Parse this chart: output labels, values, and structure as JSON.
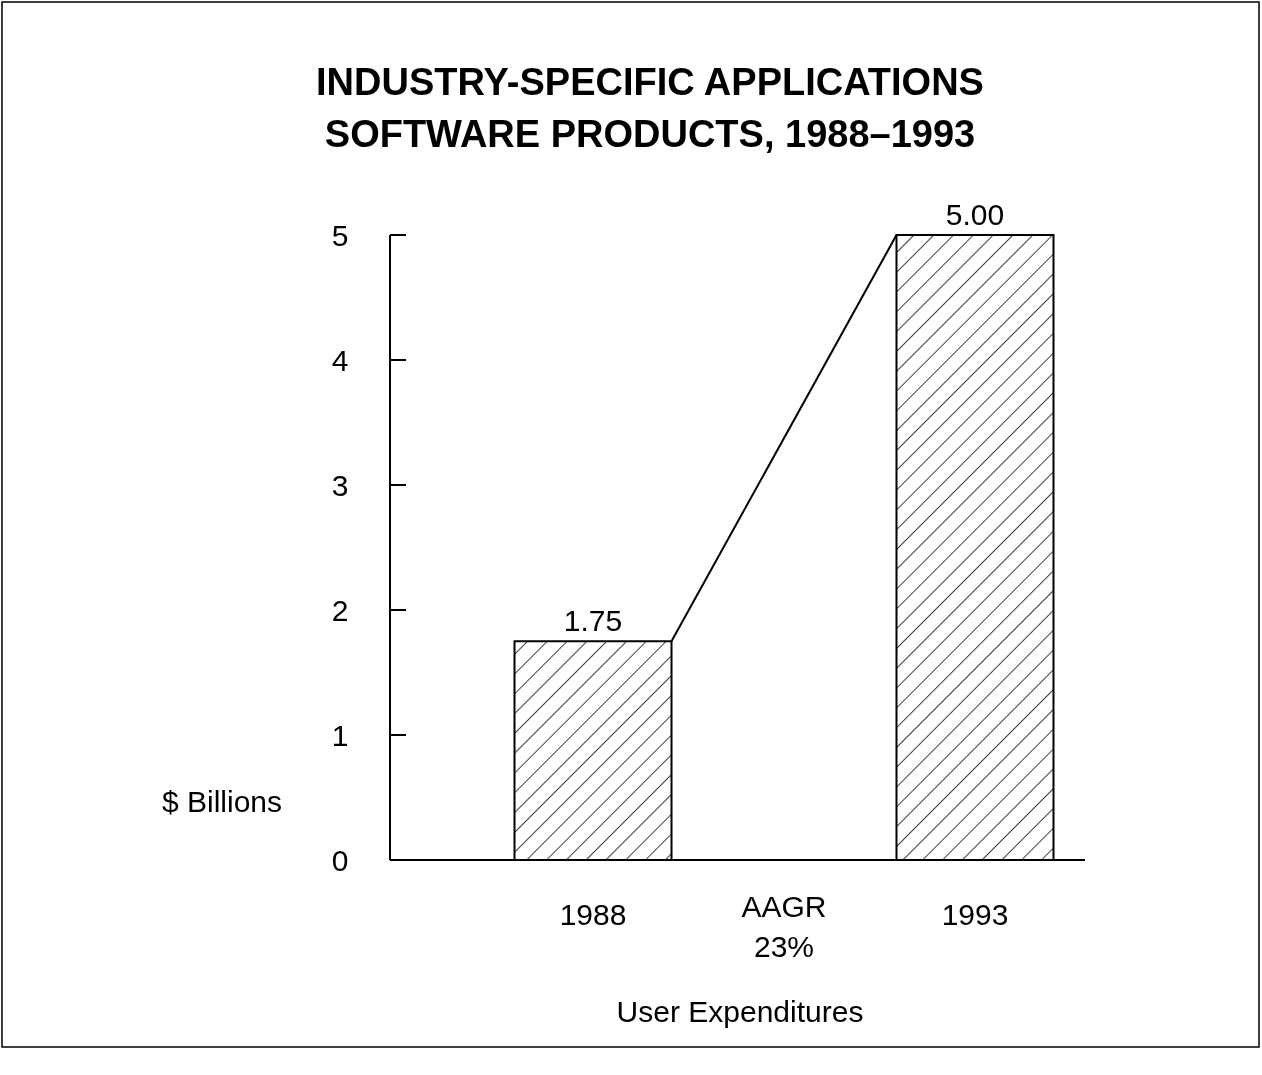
{
  "chart_data": {
    "type": "bar",
    "title": "INDUSTRY-SPECIFIC APPLICATIONS SOFTWARE PRODUCTS, 1988–1993",
    "xlabel": "User Expenditures",
    "ylabel": "$ Billions",
    "categories": [
      "1988",
      "1993"
    ],
    "values": [
      1.75,
      5.0
    ],
    "color": "#000000",
    "value_labels": [
      "1.75",
      "5.00"
    ],
    "ylim": [
      0,
      5
    ],
    "yticks": [
      0,
      1,
      2,
      3,
      4,
      5
    ],
    "annotations": [
      "AAGR 23%"
    ]
  }
}
